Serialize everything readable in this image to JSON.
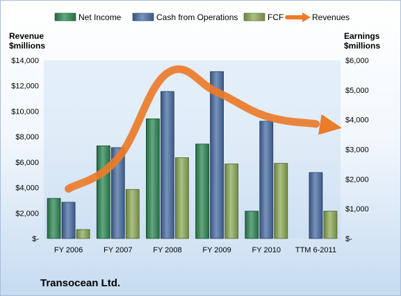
{
  "chart_data": {
    "type": "bar",
    "title": "Transocean Ltd.",
    "categories": [
      "FY 2006",
      "FY 2007",
      "FY 2008",
      "FY 2009",
      "FY 2010",
      "TTM 6-2011"
    ],
    "series": [
      {
        "name": "Net Income",
        "axis": "right",
        "color": "#2e8a55",
        "values": [
          1350,
          3120,
          4030,
          3180,
          920,
          null
        ]
      },
      {
        "name": "Cash from Operations",
        "axis": "right",
        "color": "#4a6fa6",
        "values": [
          1220,
          3060,
          4950,
          5620,
          3950,
          2220
        ]
      },
      {
        "name": "FCF",
        "axis": "right",
        "color": "#8eac58",
        "values": [
          300,
          1650,
          2720,
          2510,
          2530,
          920
        ]
      },
      {
        "name": "Revenues",
        "axis": "left",
        "type": "line",
        "color": "#ec7b2a",
        "values": [
          3900,
          6300,
          13000,
          11500,
          9600,
          9000
        ]
      }
    ],
    "left_axis": {
      "label_line1": "Revenue",
      "label_line2": "$millions",
      "ylim": [
        0,
        14000
      ],
      "ticks": [
        0,
        2000,
        4000,
        6000,
        8000,
        10000,
        12000,
        14000
      ],
      "tick_labels": [
        "$-",
        "$2,000",
        "$4,000",
        "$6,000",
        "$8,000",
        "$10,000",
        "$12,000",
        "$14,000"
      ]
    },
    "right_axis": {
      "label_line1": "Earnings",
      "label_line2": "$millions",
      "ylim": [
        0,
        6000
      ],
      "ticks": [
        0,
        1000,
        2000,
        3000,
        4000,
        5000,
        6000
      ],
      "tick_labels": [
        "$-",
        "$1,000",
        "$2,000",
        "$3,000",
        "$4,000",
        "$5,000",
        "$6,000"
      ]
    },
    "grid": false,
    "legend": "top"
  }
}
